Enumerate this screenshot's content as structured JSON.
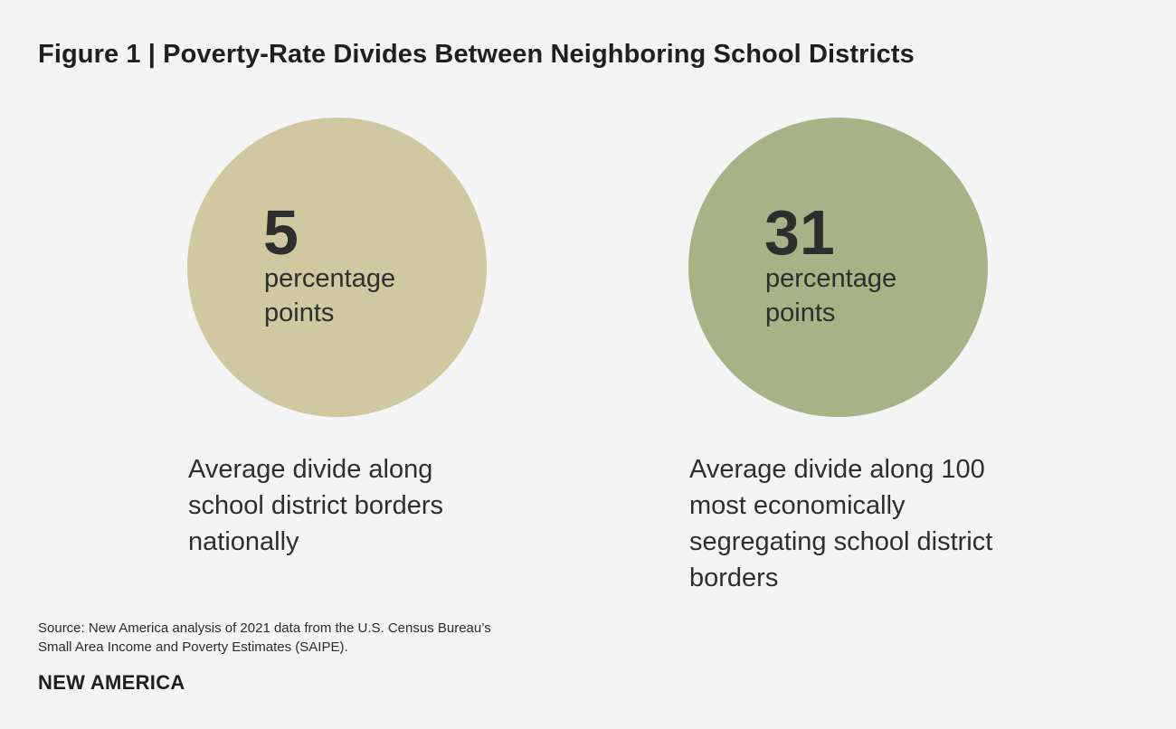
{
  "title": "Figure 1 | Poverty-Rate Divides Between Neighboring School Districts",
  "chart_data": {
    "type": "bubble-stat",
    "title": "Figure 1 | Poverty-Rate Divides Between Neighboring School Districts",
    "unit": "percentage points",
    "items": [
      {
        "value": 5,
        "value_label": "5",
        "unit_line1": "percentage",
        "unit_line2": "points",
        "caption": "Average divide along school district borders nationally",
        "color": "#cfc8a1"
      },
      {
        "value": 31,
        "value_label": "31",
        "unit_line1": "percentage",
        "unit_line2": "points",
        "caption": "Average divide along 100 most economically segregating school district borders",
        "color": "#a7b286"
      }
    ]
  },
  "source_line1": "Source: New America analysis of 2021 data from the U.S. Census Bureau’s",
  "source_line2": "Small Area Income and Poverty Estimates (SAIPE).",
  "brand": "NEW AMERICA"
}
